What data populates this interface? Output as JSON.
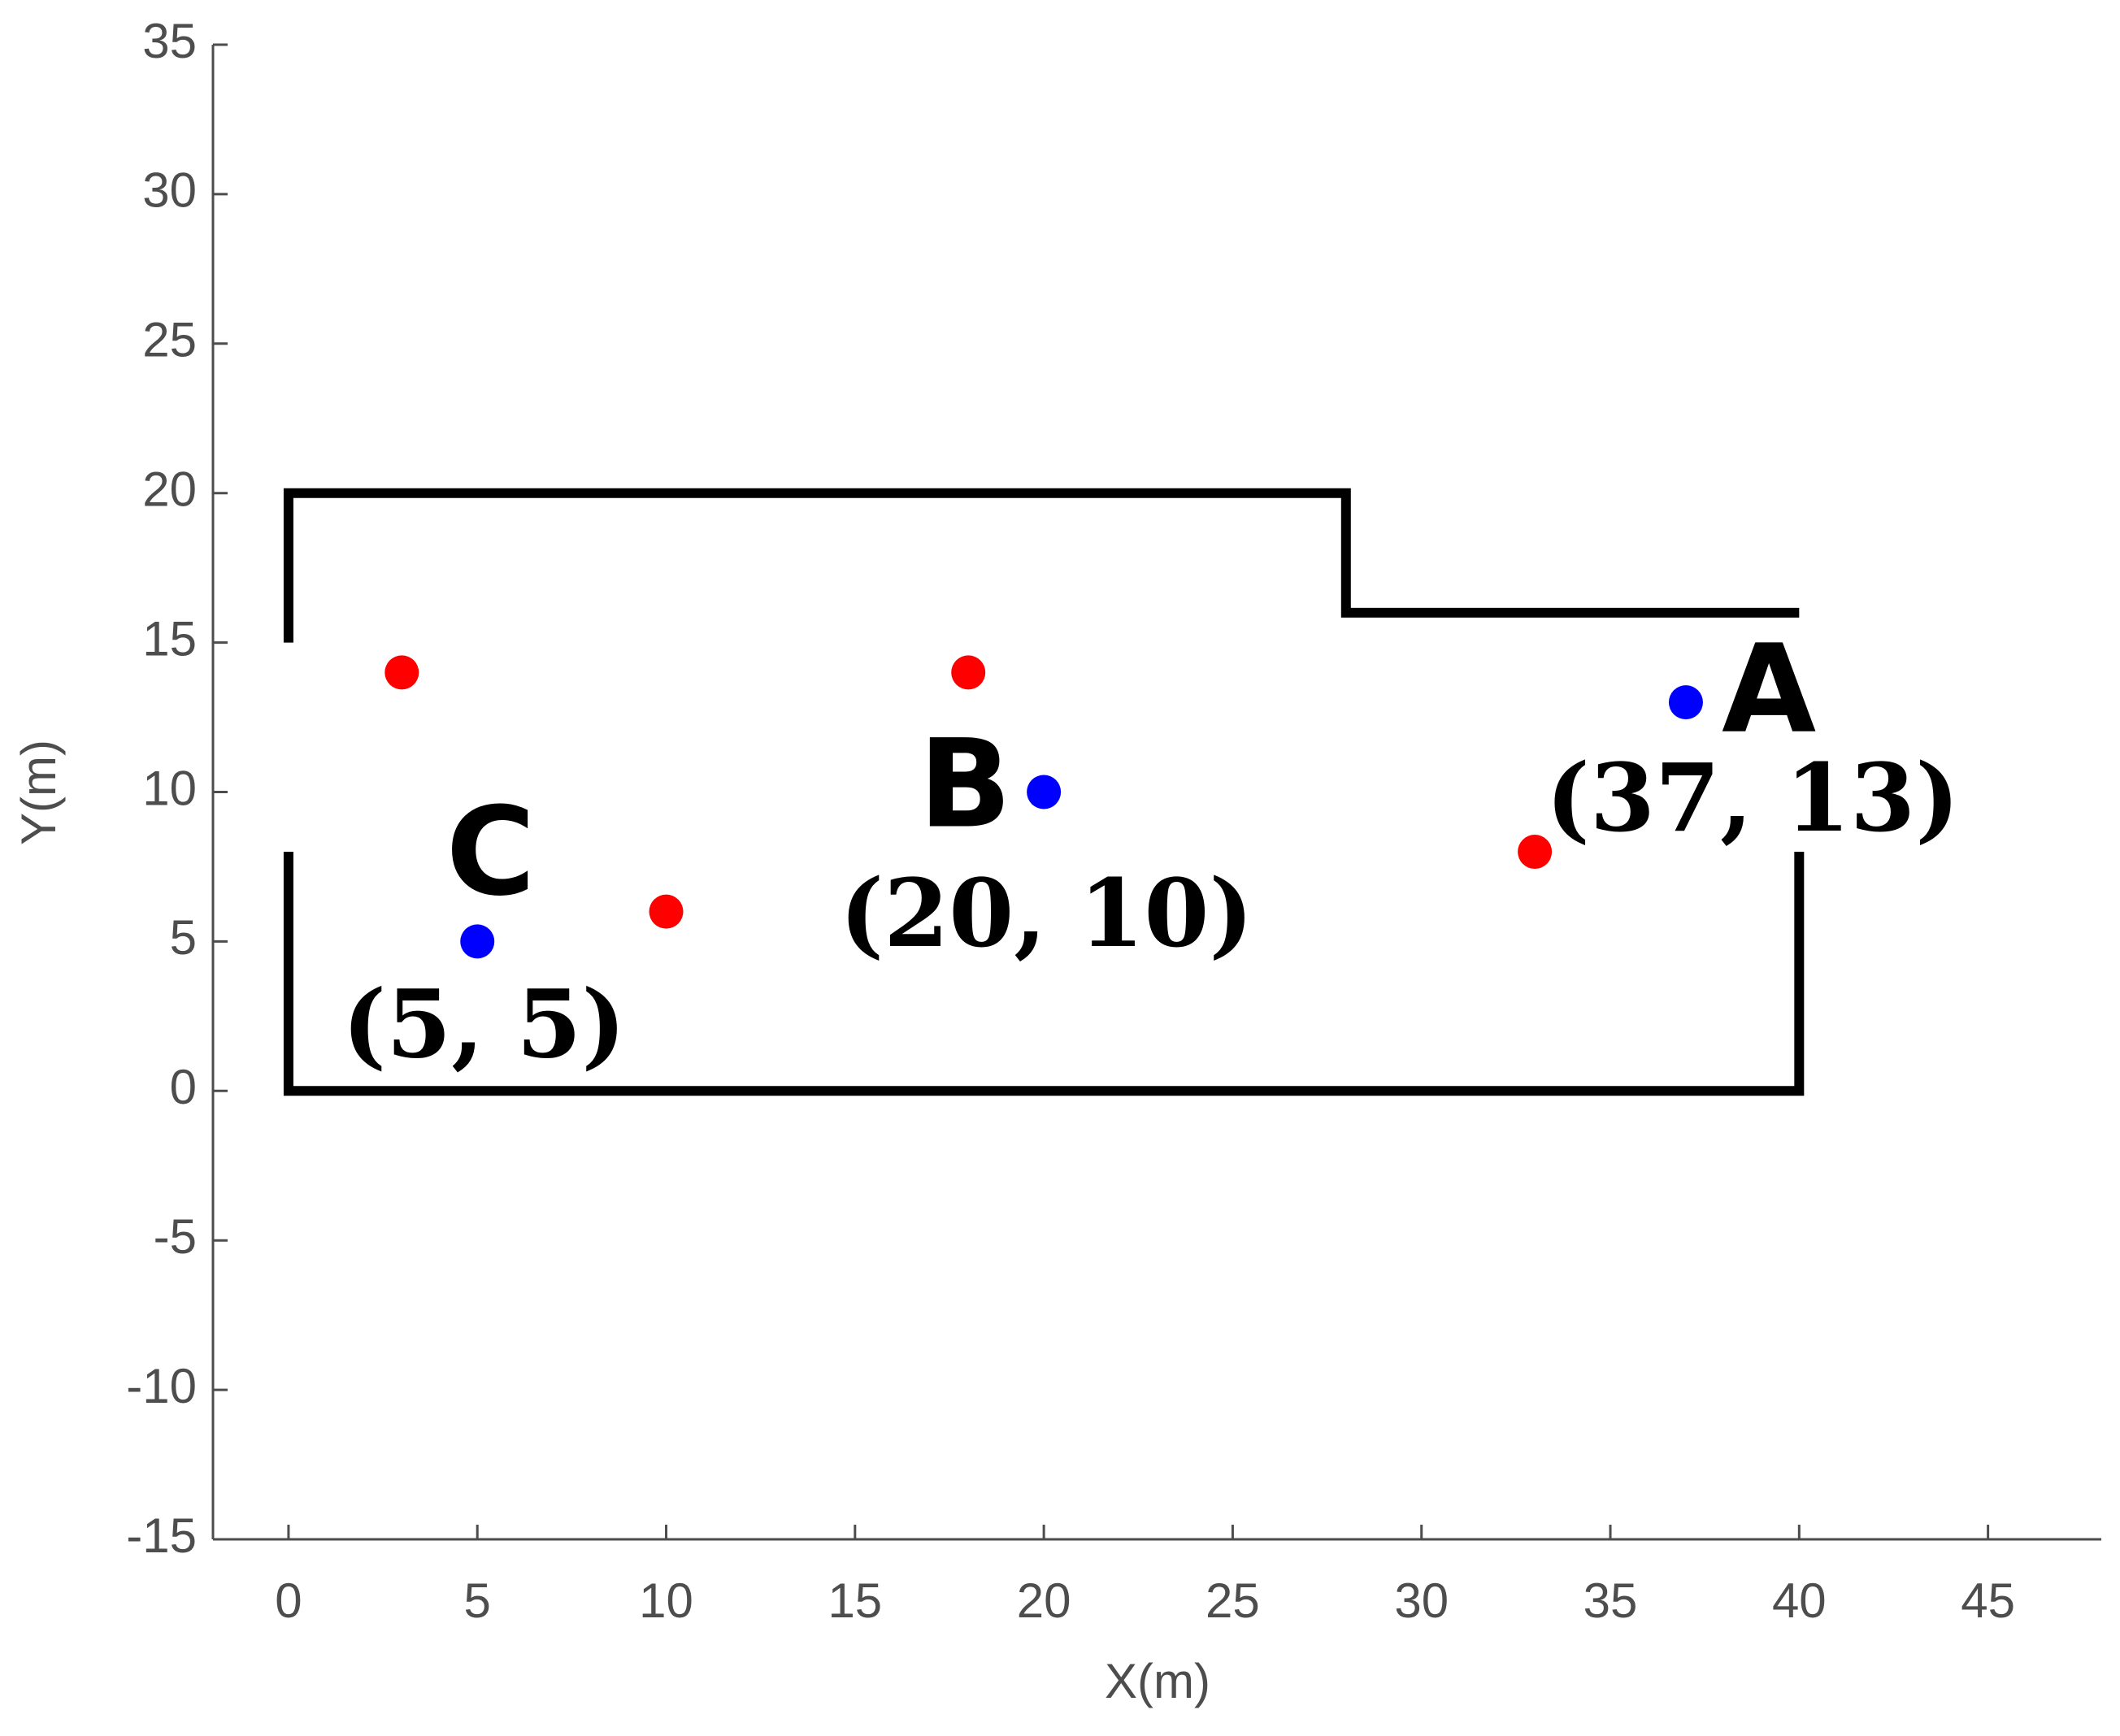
{
  "chart_data": {
    "type": "scatter",
    "xlabel": "X(m)",
    "ylabel": "Y(m)",
    "xlim": [
      -2,
      48
    ],
    "xticks": [
      0,
      5,
      10,
      15,
      20,
      25,
      30,
      35,
      40,
      45
    ],
    "ylim": [
      -15,
      35
    ],
    "yticks": [
      -15,
      -10,
      -5,
      0,
      5,
      10,
      15,
      20,
      25,
      30,
      35
    ],
    "series": [
      {
        "style": "line",
        "color": "#000000",
        "x": [
          0,
          0,
          40,
          40,
          null,
          0,
          0,
          28,
          28,
          40
        ],
        "values": [
          8,
          0,
          0,
          8,
          null,
          15,
          20,
          20,
          16,
          16
        ]
      },
      {
        "style": "marker",
        "color": "#ff0000",
        "x": [
          3,
          10,
          18,
          33
        ],
        "values": [
          14,
          6,
          14,
          8
        ]
      },
      {
        "style": "marker",
        "color": "#0000ff",
        "x": [
          5,
          20,
          37
        ],
        "values": [
          5,
          10,
          13
        ]
      }
    ],
    "annotations": [
      "A",
      "(37, 13)",
      "B",
      "(20, 10)",
      "C",
      "(5, 5)"
    ]
  }
}
